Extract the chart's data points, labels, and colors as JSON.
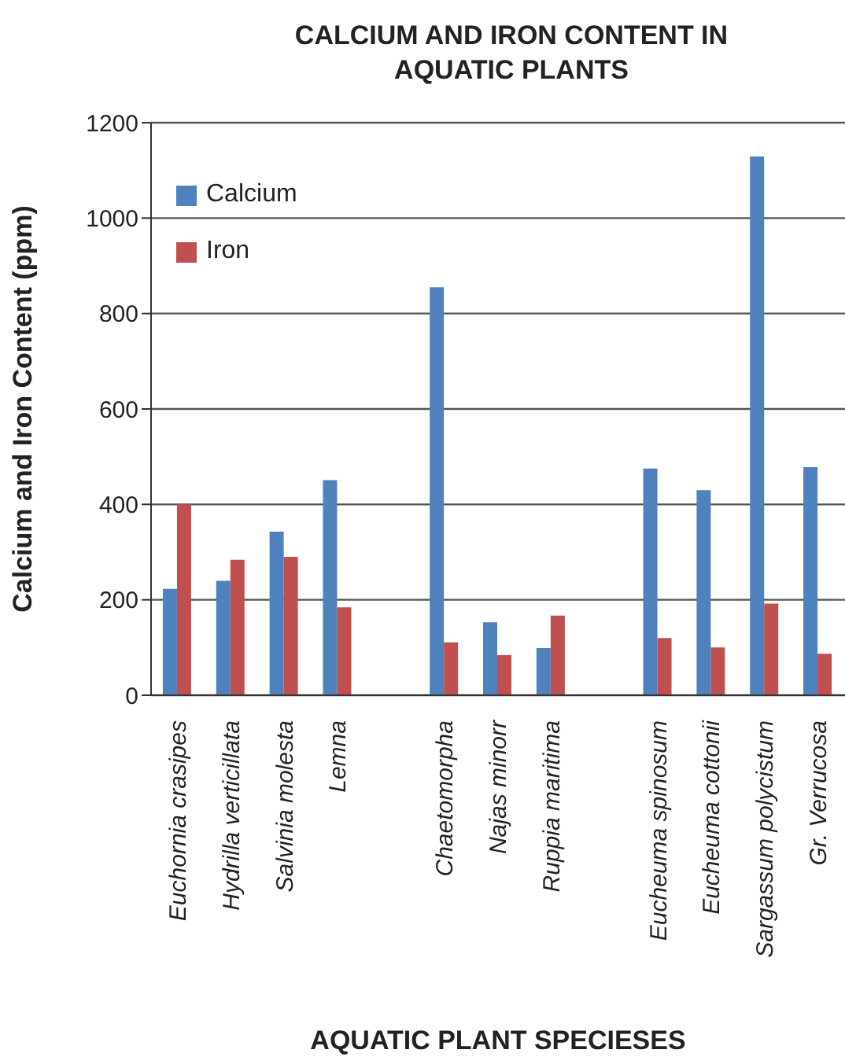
{
  "chart_data": {
    "type": "bar",
    "title": "CALCIUM AND IRON CONTENT IN AQUATIC PLANTS",
    "xlabel": "AQUATIC PLANT SPECIESES",
    "ylabel": "Calcium and Iron Content (ppm)",
    "categories": [
      "Euchornia crasipes",
      "Hydrilla verticillata",
      "Salvinia molesta",
      "Lemna",
      null,
      "Chaetomorpha",
      "Najas minorr",
      "Ruppia maritima",
      null,
      "Eucheuma spinosum",
      "Eucheuma cottonii",
      "Sargassum polycistum",
      "Gr. Verrucosa"
    ],
    "series": [
      {
        "name": "Calcium",
        "color": "#4f81bd",
        "values": [
          223,
          240,
          343,
          451,
          null,
          855,
          153,
          99,
          null,
          475,
          430,
          1129,
          478
        ]
      },
      {
        "name": "Iron",
        "color": "#c0504d",
        "values": [
          400,
          284,
          290,
          184,
          null,
          111,
          84,
          167,
          null,
          120,
          100,
          192,
          87
        ]
      }
    ],
    "ylim": [
      0,
      1200
    ],
    "yticks": [
      0,
      200,
      400,
      600,
      800,
      1000,
      1200
    ],
    "grid": "y",
    "legend": "top left"
  }
}
